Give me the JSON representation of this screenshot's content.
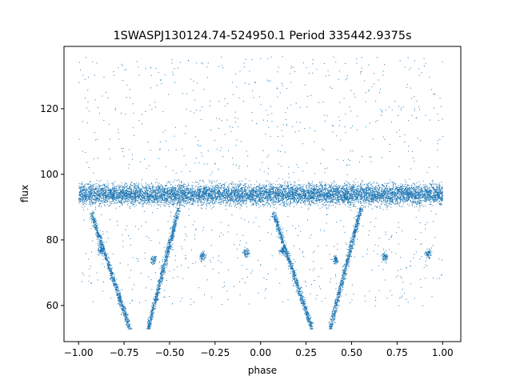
{
  "chart_data": {
    "type": "scatter",
    "title": "1SWASPJ130124.74-524950.1 Period 335442.9375s",
    "xlabel": "phase",
    "ylabel": "flux",
    "xlim": [
      -1.08,
      1.1
    ],
    "ylim": [
      49,
      139
    ],
    "x_ticks": [
      -1.0,
      -0.75,
      -0.5,
      -0.25,
      0.0,
      0.25,
      0.5,
      0.75,
      1.0
    ],
    "x_tick_labels": [
      "−1.00",
      "−0.75",
      "−0.50",
      "−0.25",
      "0.00",
      "0.25",
      "0.50",
      "0.75",
      "1.00"
    ],
    "y_ticks": [
      60,
      80,
      100,
      120
    ],
    "y_tick_labels": [
      "60",
      "80",
      "100",
      "120"
    ],
    "grid": false,
    "legend": "none",
    "marker_color": "#1f77b4",
    "series": [
      {
        "values_description_free": true,
        "band": {
          "x_range": [
            -1.0,
            1.0
          ],
          "y_center": 94,
          "y_spread": [
            88,
            100
          ]
        },
        "dips": [
          {
            "left_edge": [
              -0.93,
              88
            ],
            "bottom_left": [
              -0.72,
              53
            ],
            "bottom_right": [
              -0.62,
              53
            ],
            "right_edge": [
              -0.45,
              90
            ]
          },
          {
            "left_edge": [
              0.07,
              88
            ],
            "bottom_left": [
              0.28,
              53
            ],
            "bottom_right": [
              0.38,
              53
            ],
            "right_edge": [
              0.55,
              90
            ]
          }
        ],
        "clumps": [
          {
            "x": -0.59,
            "y": 74
          },
          {
            "x": -0.32,
            "y": 75
          },
          {
            "x": -0.08,
            "y": 76
          },
          {
            "x": -0.88,
            "y": 77
          },
          {
            "x": 0.41,
            "y": 74
          },
          {
            "x": 0.68,
            "y": 75
          },
          {
            "x": 0.92,
            "y": 76
          },
          {
            "x": 0.12,
            "y": 77
          }
        ]
      }
    ]
  }
}
